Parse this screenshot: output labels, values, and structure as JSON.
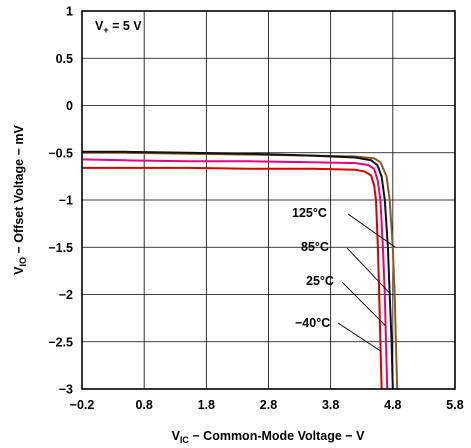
{
  "chart_data": {
    "type": "line",
    "xlabel": {
      "main": "V",
      "sub": "IC",
      "rest": " − Common-Mode Voltage − V"
    },
    "ylabel": {
      "main": "V",
      "sub": "IO",
      "rest": " − Offset Voltage − mV"
    },
    "xlim": [
      -0.2,
      5.8
    ],
    "ylim": [
      -3,
      1
    ],
    "xticks": [
      -0.2,
      0.8,
      1.8,
      2.8,
      3.8,
      4.8,
      5.8
    ],
    "xtick_labels": [
      "−0.2",
      "0.8",
      "1.8",
      "2.8",
      "3.8",
      "4.8",
      "5.8"
    ],
    "yticks": [
      1,
      0.5,
      0,
      -0.5,
      -1,
      -1.5,
      -2,
      -2.5,
      -3
    ],
    "ytick_labels": [
      "1",
      "0.5",
      "0",
      "−0.5",
      "−1",
      "−1.5",
      "−2",
      "−2.5",
      "−3"
    ],
    "grid": true,
    "condition": {
      "main": "V",
      "sub": "+",
      "rest": " = 5 V"
    },
    "series": [
      {
        "name": "125°C",
        "color": "#8b5a2b",
        "x": [
          -0.2,
          0.5,
          1.5,
          2.5,
          3.5,
          4.2,
          4.5,
          4.6,
          4.7,
          4.75,
          4.8,
          4.83,
          4.85,
          4.87
        ],
        "y": [
          -0.5,
          -0.5,
          -0.51,
          -0.52,
          -0.53,
          -0.54,
          -0.56,
          -0.6,
          -0.75,
          -1.0,
          -1.5,
          -2.0,
          -2.5,
          -3.0
        ]
      },
      {
        "name": "85°C",
        "color": "#111111",
        "x": [
          -0.2,
          0.5,
          1.5,
          2.5,
          3.5,
          4.2,
          4.45,
          4.55,
          4.62,
          4.67,
          4.72,
          4.75,
          4.78,
          4.8
        ],
        "y": [
          -0.49,
          -0.49,
          -0.5,
          -0.51,
          -0.53,
          -0.55,
          -0.58,
          -0.63,
          -0.75,
          -1.0,
          -1.5,
          -2.0,
          -2.5,
          -3.0
        ]
      },
      {
        "name": "25°C",
        "color": "#e6007e",
        "x": [
          -0.2,
          0.5,
          1.5,
          2.5,
          3.5,
          4.2,
          4.4,
          4.5,
          4.56,
          4.6,
          4.64,
          4.67,
          4.69,
          4.71
        ],
        "y": [
          -0.57,
          -0.58,
          -0.59,
          -0.59,
          -0.6,
          -0.61,
          -0.63,
          -0.67,
          -0.8,
          -1.0,
          -1.5,
          -2.0,
          -2.5,
          -3.0
        ]
      },
      {
        "name": "−40°C",
        "color": "#d40000",
        "x": [
          -0.2,
          0.5,
          1.5,
          2.5,
          3.5,
          4.2,
          4.35,
          4.45,
          4.5,
          4.53,
          4.56,
          4.58,
          4.6,
          4.62
        ],
        "y": [
          -0.66,
          -0.66,
          -0.66,
          -0.67,
          -0.67,
          -0.68,
          -0.7,
          -0.74,
          -0.85,
          -1.0,
          -1.5,
          -2.0,
          -2.5,
          -3.0
        ]
      }
    ],
    "annotations": [
      "125°C",
      "85°C",
      "25°C",
      "−40°C"
    ]
  }
}
